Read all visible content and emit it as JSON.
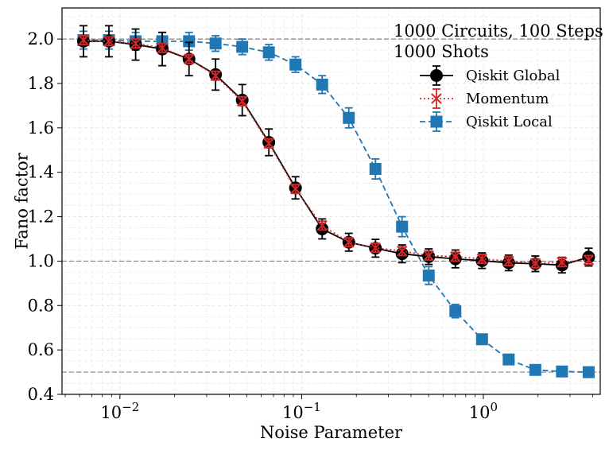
{
  "chart_data": {
    "type": "line",
    "title": "",
    "xlabel": "Noise Parameter",
    "ylabel": "Fano factor",
    "xscale": "log",
    "xlim": [
      0.0048,
      4.4
    ],
    "ylim": [
      0.4,
      2.14
    ],
    "x_ticks": [
      {
        "value": 0.01,
        "base": "10",
        "exp": "−2"
      },
      {
        "value": 0.1,
        "base": "10",
        "exp": "−1"
      },
      {
        "value": 1,
        "base": "10",
        "exp": "0"
      }
    ],
    "y_ticks": [
      {
        "value": 0.4,
        "label": "0.4"
      },
      {
        "value": 0.6,
        "label": "0.6"
      },
      {
        "value": 0.8,
        "label": "0.8"
      },
      {
        "value": 1.0,
        "label": "1.0"
      },
      {
        "value": 1.2,
        "label": "1.2"
      },
      {
        "value": 1.4,
        "label": "1.4"
      },
      {
        "value": 1.6,
        "label": "1.6"
      },
      {
        "value": 1.8,
        "label": "1.8"
      },
      {
        "value": 2.0,
        "label": "2.0"
      }
    ],
    "reference_lines": [
      2.0,
      1.0,
      0.5
    ],
    "grid": true,
    "legend_position": "upper-right",
    "annotation": [
      "1000 Circuits, 100 Steps",
      "1000 Shots"
    ],
    "x": [
      0.0063,
      0.0087,
      0.0122,
      0.0171,
      0.024,
      0.0336,
      0.0471,
      0.066,
      0.0925,
      0.1297,
      0.1818,
      0.2548,
      0.3571,
      0.5006,
      0.7017,
      0.9836,
      1.3788,
      1.9327,
      2.7092,
      3.7977
    ],
    "series": [
      {
        "name": "Qiskit Global",
        "color": "#000000",
        "marker": "circle",
        "line": "solid",
        "values": [
          1.99,
          1.99,
          1.975,
          1.955,
          1.91,
          1.84,
          1.725,
          1.535,
          1.33,
          1.145,
          1.085,
          1.058,
          1.033,
          1.02,
          1.01,
          1.002,
          0.992,
          0.988,
          0.982,
          1.018
        ],
        "errors": [
          0.07,
          0.07,
          0.07,
          0.075,
          0.075,
          0.07,
          0.07,
          0.06,
          0.05,
          0.045,
          0.04,
          0.04,
          0.04,
          0.035,
          0.04,
          0.035,
          0.035,
          0.035,
          0.035,
          0.04
        ]
      },
      {
        "name": "Momentum",
        "color": "#d62728",
        "marker": "x",
        "line": "dotted",
        "values": [
          1.995,
          1.99,
          1.98,
          1.96,
          1.91,
          1.835,
          1.72,
          1.53,
          1.325,
          1.16,
          1.085,
          1.06,
          1.045,
          1.025,
          1.02,
          1.01,
          1.0,
          0.99,
          0.995,
          1.005
        ],
        "errors": [
          0.02,
          0.02,
          0.02,
          0.02,
          0.02,
          0.02,
          0.02,
          0.02,
          0.02,
          0.02,
          0.02,
          0.02,
          0.02,
          0.02,
          0.02,
          0.02,
          0.02,
          0.02,
          0.02,
          0.02
        ]
      },
      {
        "name": "Qiskit Local",
        "color": "#1f77b4",
        "marker": "square",
        "line": "dashed",
        "values": [
          1.995,
          1.995,
          1.99,
          1.99,
          1.99,
          1.98,
          1.965,
          1.94,
          1.885,
          1.795,
          1.645,
          1.415,
          1.155,
          0.935,
          0.775,
          0.648,
          0.557,
          0.51,
          0.503,
          0.5
        ],
        "errors": [
          0.04,
          0.04,
          0.04,
          0.04,
          0.04,
          0.035,
          0.035,
          0.035,
          0.035,
          0.04,
          0.045,
          0.045,
          0.045,
          0.04,
          0.03,
          0.02,
          0.015,
          0.01,
          0.01,
          0.01
        ]
      }
    ]
  }
}
